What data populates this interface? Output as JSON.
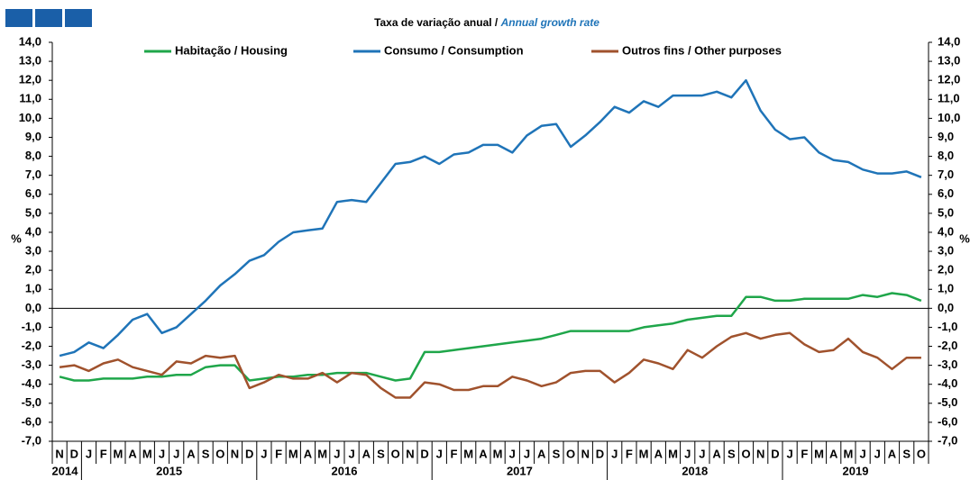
{
  "chart_data": {
    "type": "line",
    "title": "Taxa de variação anual / ",
    "title_en": "Annual growth rate",
    "ylabel": "%",
    "y2label": "%",
    "categories": [
      "N",
      "D",
      "J",
      "F",
      "M",
      "A",
      "M",
      "J",
      "J",
      "A",
      "S",
      "O",
      "N",
      "D",
      "J",
      "F",
      "M",
      "A",
      "M",
      "J",
      "J",
      "A",
      "S",
      "O",
      "N",
      "D",
      "J",
      "F",
      "M",
      "A",
      "M",
      "J",
      "J",
      "A",
      "S",
      "O",
      "N",
      "D",
      "J",
      "F",
      "M",
      "A",
      "M",
      "J",
      "J",
      "A",
      "S",
      "O",
      "N",
      "D",
      "J",
      "F",
      "M",
      "A",
      "M",
      "J",
      "J",
      "A",
      "S",
      "O"
    ],
    "year_labels": [
      "2014",
      "2015",
      "2016",
      "2017",
      "2018",
      "2019"
    ],
    "series": [
      {
        "name": "Habitação / Housing",
        "color": "#1fa64a",
        "values": [
          -3.6,
          -3.8,
          -3.8,
          -3.7,
          -3.7,
          -3.7,
          -3.6,
          -3.6,
          -3.5,
          -3.5,
          -3.1,
          -3.0,
          -3.0,
          -3.8,
          -3.7,
          -3.6,
          -3.6,
          -3.5,
          -3.5,
          -3.4,
          -3.4,
          -3.4,
          -3.6,
          -3.8,
          -3.7,
          -2.3,
          -2.3,
          -2.2,
          -2.1,
          -2.0,
          -1.9,
          -1.8,
          -1.7,
          -1.6,
          -1.4,
          -1.2,
          -1.2,
          -1.2,
          -1.2,
          -1.2,
          -1.0,
          -0.9,
          -0.8,
          -0.6,
          -0.5,
          -0.4,
          -0.4,
          0.6,
          0.6,
          0.4,
          0.4,
          0.5,
          0.5,
          0.5,
          0.5,
          0.7,
          0.6,
          0.8,
          0.7,
          0.4
        ]
      },
      {
        "name": "Consumo / Consumption",
        "color": "#1f74b8",
        "values": [
          -2.5,
          -2.3,
          -1.8,
          -2.1,
          -1.4,
          -0.6,
          -0.3,
          -1.3,
          -1.0,
          -0.3,
          0.4,
          1.2,
          1.8,
          2.5,
          2.8,
          3.5,
          4.0,
          4.1,
          4.2,
          5.6,
          5.7,
          5.6,
          6.6,
          7.6,
          7.7,
          8.0,
          7.6,
          8.1,
          8.2,
          8.6,
          8.6,
          8.2,
          9.1,
          9.6,
          9.7,
          8.5,
          9.1,
          9.8,
          10.6,
          10.3,
          10.9,
          10.6,
          11.2,
          11.2,
          11.2,
          11.4,
          11.1,
          12.0,
          10.4,
          9.4,
          8.9,
          9.0,
          8.2,
          7.8,
          7.7,
          7.3,
          7.1,
          7.1,
          7.2,
          6.9
        ]
      },
      {
        "name": "Outros fins / Other purposes",
        "color": "#a0522d",
        "values": [
          -3.1,
          -3.0,
          -3.3,
          -2.9,
          -2.7,
          -3.1,
          -3.3,
          -3.5,
          -2.8,
          -2.9,
          -2.5,
          -2.6,
          -2.5,
          -4.2,
          -3.9,
          -3.5,
          -3.7,
          -3.7,
          -3.4,
          -3.9,
          -3.4,
          -3.5,
          -4.2,
          -4.7,
          -4.7,
          -3.9,
          -4.0,
          -4.3,
          -4.3,
          -4.1,
          -4.1,
          -3.6,
          -3.8,
          -4.1,
          -3.9,
          -3.4,
          -3.3,
          -3.3,
          -3.9,
          -3.4,
          -2.7,
          -2.9,
          -3.2,
          -2.2,
          -2.6,
          -2.0,
          -1.5,
          -1.3,
          -1.6,
          -1.4,
          -1.3,
          -1.9,
          -2.3,
          -2.2,
          -1.6,
          -2.3,
          -2.6,
          -3.2,
          -2.6,
          -2.6
        ]
      }
    ],
    "ylim": [
      -7,
      14
    ],
    "yticks": [
      {
        "value": -7,
        "label": "-7,0"
      },
      {
        "value": -6,
        "label": "-6,0"
      },
      {
        "value": -5,
        "label": "-5,0"
      },
      {
        "value": -4,
        "label": "-4,0"
      },
      {
        "value": -3,
        "label": "-3,0"
      },
      {
        "value": -2,
        "label": "-2,0"
      },
      {
        "value": -1,
        "label": "-1,0"
      },
      {
        "value": 0,
        "label": "0,0"
      },
      {
        "value": 1,
        "label": "1,0"
      },
      {
        "value": 2,
        "label": "2,0"
      },
      {
        "value": 3,
        "label": "3,0"
      },
      {
        "value": 4,
        "label": "4,0"
      },
      {
        "value": 5,
        "label": "5,0"
      },
      {
        "value": 6,
        "label": "6,0"
      },
      {
        "value": 7,
        "label": "7,0"
      },
      {
        "value": 8,
        "label": "8,0"
      },
      {
        "value": 9,
        "label": "9,0"
      },
      {
        "value": 10,
        "label": "10,0"
      },
      {
        "value": 11,
        "label": "11,0"
      },
      {
        "value": 12,
        "label": "12,0"
      },
      {
        "value": 13,
        "label": "13,0"
      },
      {
        "value": 14,
        "label": "14,0"
      }
    ],
    "y2lim": [
      -7,
      14
    ],
    "y2ticks": [
      {
        "value": -7,
        "label": "-7,0"
      },
      {
        "value": -6,
        "label": "-6,0"
      },
      {
        "value": -5,
        "label": "-5,0"
      },
      {
        "value": -4,
        "label": "-4,0"
      },
      {
        "value": -3,
        "label": "-3,0"
      },
      {
        "value": -2,
        "label": "-2,0"
      },
      {
        "value": -1,
        "label": "-1,0"
      },
      {
        "value": 0,
        "label": "0,0"
      },
      {
        "value": 1,
        "label": "1,0"
      },
      {
        "value": 2,
        "label": "2,0"
      },
      {
        "value": 3,
        "label": "3,0"
      },
      {
        "value": 4,
        "label": "4,0"
      },
      {
        "value": 5,
        "label": "5,0"
      },
      {
        "value": 6,
        "label": "6,0"
      },
      {
        "value": 7,
        "label": "7,0"
      },
      {
        "value": 8,
        "label": "8,0"
      },
      {
        "value": 9,
        "label": "9,0"
      },
      {
        "value": 10,
        "label": "10,0"
      },
      {
        "value": 11,
        "label": "11,0"
      },
      {
        "value": 12,
        "label": "12,0"
      },
      {
        "value": 13,
        "label": "13,0"
      },
      {
        "value": 14,
        "label": "14,0"
      }
    ],
    "grid": false
  }
}
